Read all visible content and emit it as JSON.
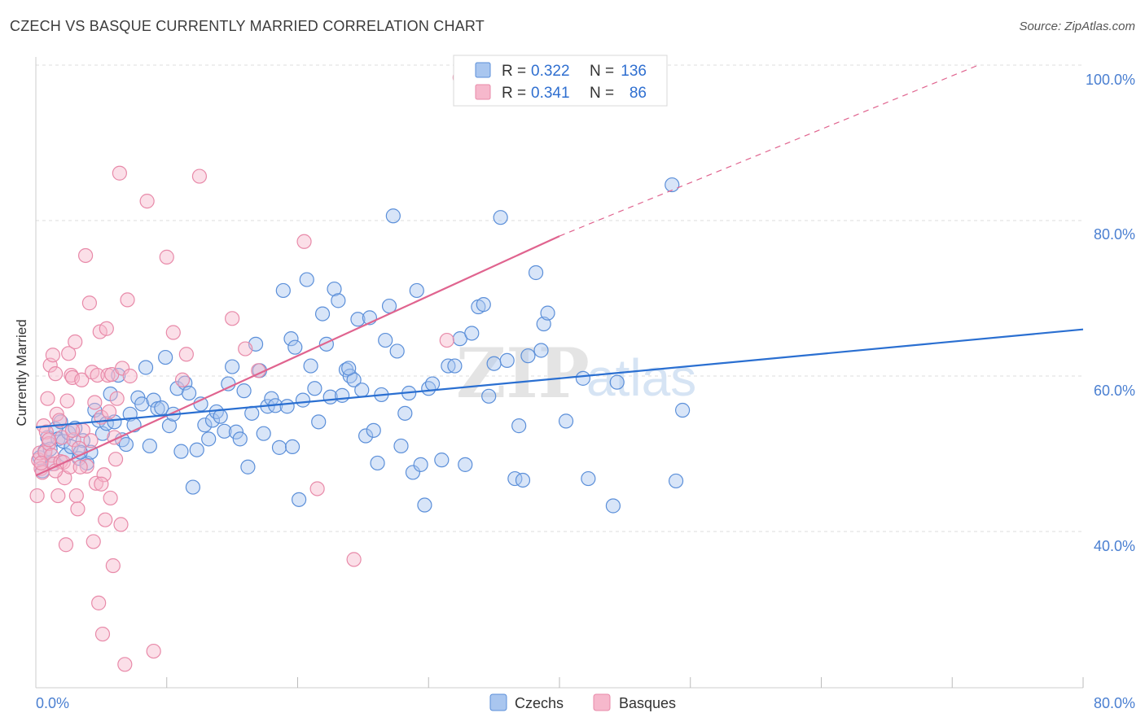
{
  "title": "CZECH VS BASQUE CURRENTLY MARRIED CORRELATION CHART",
  "source": "Source: ZipAtlas.com",
  "watermark": {
    "zip": "ZIP",
    "atlas": "atlas"
  },
  "colors": {
    "czech_fill": "#a9c6ef",
    "czech_stroke": "#5b8fd9",
    "czech_line": "#2a6fd1",
    "basque_fill": "#f6b8cc",
    "basque_stroke": "#e88aa9",
    "basque_line": "#e0648f",
    "grid": "#dddddd",
    "axis_text": "#4a7fd1"
  },
  "legend": {
    "rows": [
      {
        "r_label": "R =",
        "r_value": "0.322",
        "n_label": "N =",
        "n_value": "136",
        "series": "czech"
      },
      {
        "r_label": "R =",
        "r_value": "0.341",
        "n_label": "N =",
        "n_value": "86",
        "series": "basque"
      }
    ]
  },
  "bottom_legend": [
    "Czechs",
    "Basques"
  ],
  "chart_data": {
    "type": "scatter",
    "title": "CZECH VS BASQUE CURRENTLY MARRIED CORRELATION CHART",
    "ylabel": "Currently Married",
    "xlabel": "",
    "x_ticks": [
      "0.0%",
      "80.0%"
    ],
    "y_ticks": [
      "40.0%",
      "60.0%",
      "80.0%",
      "100.0%"
    ],
    "xlim": [
      0,
      80
    ],
    "ylim": [
      20,
      102
    ],
    "grid": true,
    "legend_position": "top-center",
    "series": [
      {
        "name": "Czechs",
        "R": 0.322,
        "N": 136,
        "trend": {
          "x0": 0,
          "y0": 53.4,
          "x1": 80,
          "y1": 66.0
        },
        "points": [
          [
            0.3,
            49.5
          ],
          [
            0.5,
            47.8
          ],
          [
            0.7,
            50.4
          ],
          [
            0.9,
            52.1
          ],
          [
            1.1,
            50.6
          ],
          [
            1.3,
            48.7
          ],
          [
            1.5,
            53.2
          ],
          [
            1.7,
            51.9
          ],
          [
            1.9,
            54.1
          ],
          [
            2.1,
            51.6
          ],
          [
            2.3,
            49.8
          ],
          [
            2.5,
            52.7
          ],
          [
            2.7,
            50.9
          ],
          [
            3.0,
            53.3
          ],
          [
            3.3,
            49.4
          ],
          [
            3.6,
            51.7
          ],
          [
            3.9,
            48.8
          ],
          [
            4.2,
            50.2
          ],
          [
            4.5,
            55.6
          ],
          [
            4.8,
            54.3
          ],
          [
            5.1,
            52.6
          ],
          [
            5.4,
            53.9
          ],
          [
            5.7,
            57.7
          ],
          [
            6.0,
            54.1
          ],
          [
            6.3,
            60.1
          ],
          [
            6.6,
            51.8
          ],
          [
            6.9,
            51.2
          ],
          [
            7.2,
            55.1
          ],
          [
            7.5,
            53.7
          ],
          [
            7.8,
            57.2
          ],
          [
            8.1,
            56.4
          ],
          [
            8.4,
            61.1
          ],
          [
            8.7,
            51.0
          ],
          [
            9.0,
            56.9
          ],
          [
            9.3,
            55.8
          ],
          [
            9.6,
            55.9
          ],
          [
            9.9,
            62.4
          ],
          [
            10.2,
            53.6
          ],
          [
            10.5,
            55.1
          ],
          [
            10.8,
            58.4
          ],
          [
            11.1,
            50.3
          ],
          [
            11.4,
            59.1
          ],
          [
            11.7,
            57.8
          ],
          [
            12.0,
            45.7
          ],
          [
            12.3,
            50.5
          ],
          [
            12.6,
            56.4
          ],
          [
            12.9,
            53.7
          ],
          [
            13.2,
            51.9
          ],
          [
            13.5,
            54.3
          ],
          [
            13.8,
            55.4
          ],
          [
            14.1,
            54.8
          ],
          [
            14.4,
            52.9
          ],
          [
            14.7,
            59.0
          ],
          [
            15.0,
            61.2
          ],
          [
            15.3,
            52.8
          ],
          [
            15.6,
            51.9
          ],
          [
            15.9,
            58.1
          ],
          [
            16.2,
            48.3
          ],
          [
            16.5,
            55.2
          ],
          [
            16.8,
            64.1
          ],
          [
            17.1,
            60.7
          ],
          [
            17.4,
            52.6
          ],
          [
            17.7,
            56.1
          ],
          [
            18.0,
            57.1
          ],
          [
            18.3,
            56.2
          ],
          [
            18.6,
            50.8
          ],
          [
            18.9,
            71.0
          ],
          [
            19.2,
            56.1
          ],
          [
            19.5,
            64.8
          ],
          [
            19.8,
            63.7
          ],
          [
            20.1,
            44.1
          ],
          [
            20.4,
            56.9
          ],
          [
            20.7,
            72.4
          ],
          [
            21.0,
            61.3
          ],
          [
            21.3,
            58.4
          ],
          [
            21.6,
            54.1
          ],
          [
            21.9,
            68.0
          ],
          [
            22.2,
            64.1
          ],
          [
            22.5,
            57.3
          ],
          [
            22.8,
            71.2
          ],
          [
            23.1,
            69.7
          ],
          [
            23.4,
            57.5
          ],
          [
            23.7,
            60.8
          ],
          [
            24.0,
            60.0
          ],
          [
            24.3,
            59.5
          ],
          [
            24.6,
            67.3
          ],
          [
            24.9,
            58.2
          ],
          [
            25.2,
            52.3
          ],
          [
            25.5,
            67.5
          ],
          [
            25.8,
            53.0
          ],
          [
            26.1,
            48.8
          ],
          [
            26.4,
            57.6
          ],
          [
            26.7,
            64.6
          ],
          [
            27.0,
            69.0
          ],
          [
            27.3,
            80.6
          ],
          [
            27.6,
            63.2
          ],
          [
            27.9,
            51.0
          ],
          [
            28.2,
            55.2
          ],
          [
            28.5,
            57.8
          ],
          [
            28.8,
            47.6
          ],
          [
            29.1,
            71.0
          ],
          [
            29.4,
            48.6
          ],
          [
            29.7,
            43.4
          ],
          [
            30.0,
            58.4
          ],
          [
            30.3,
            59.0
          ],
          [
            31.0,
            49.2
          ],
          [
            31.5,
            61.3
          ],
          [
            32.0,
            61.3
          ],
          [
            32.4,
            64.8
          ],
          [
            32.8,
            48.6
          ],
          [
            33.3,
            65.5
          ],
          [
            33.8,
            68.9
          ],
          [
            34.2,
            69.2
          ],
          [
            34.6,
            57.4
          ],
          [
            35.0,
            61.6
          ],
          [
            35.5,
            80.4
          ],
          [
            36.0,
            62.0
          ],
          [
            36.6,
            46.8
          ],
          [
            36.9,
            53.6
          ],
          [
            37.2,
            46.6
          ],
          [
            37.6,
            62.6
          ],
          [
            38.2,
            73.3
          ],
          [
            38.6,
            63.3
          ],
          [
            38.8,
            66.7
          ],
          [
            39.1,
            68.1
          ],
          [
            40.5,
            54.2
          ],
          [
            41.8,
            59.7
          ],
          [
            42.2,
            46.8
          ],
          [
            44.1,
            43.3
          ],
          [
            44.4,
            59.2
          ],
          [
            48.6,
            84.6
          ],
          [
            48.9,
            46.5
          ],
          [
            49.4,
            55.6
          ],
          [
            19.6,
            50.9
          ],
          [
            23.9,
            61.0
          ],
          [
            3.4,
            50.2
          ]
        ]
      },
      {
        "name": "Basques",
        "R": 0.341,
        "N": 86,
        "trend": {
          "x0": 0,
          "y0": 47.2,
          "x1": 40,
          "y1": 78.0
        },
        "trend_dashed": {
          "x0": 40,
          "y0": 78.0,
          "x1": 72,
          "y1": 100.0
        },
        "points": [
          [
            0.1,
            44.6
          ],
          [
            0.2,
            49.2
          ],
          [
            0.3,
            50.1
          ],
          [
            0.4,
            48.1
          ],
          [
            0.5,
            47.6
          ],
          [
            0.6,
            53.6
          ],
          [
            0.7,
            50.2
          ],
          [
            0.8,
            52.8
          ],
          [
            0.9,
            57.1
          ],
          [
            1.0,
            51.3
          ],
          [
            1.1,
            61.4
          ],
          [
            1.2,
            49.8
          ],
          [
            1.3,
            62.7
          ],
          [
            1.4,
            48.7
          ],
          [
            1.5,
            60.3
          ],
          [
            1.6,
            55.1
          ],
          [
            1.7,
            44.6
          ],
          [
            1.8,
            54.3
          ],
          [
            1.9,
            49.0
          ],
          [
            2.0,
            52.1
          ],
          [
            2.1,
            48.9
          ],
          [
            2.2,
            46.9
          ],
          [
            2.3,
            38.3
          ],
          [
            2.4,
            56.8
          ],
          [
            2.5,
            62.9
          ],
          [
            2.6,
            48.3
          ],
          [
            2.7,
            60.1
          ],
          [
            2.8,
            59.8
          ],
          [
            2.9,
            51.8
          ],
          [
            3.0,
            64.4
          ],
          [
            3.1,
            44.6
          ],
          [
            3.2,
            42.9
          ],
          [
            3.3,
            50.7
          ],
          [
            3.5,
            59.5
          ],
          [
            3.6,
            53.0
          ],
          [
            3.8,
            75.5
          ],
          [
            3.9,
            48.4
          ],
          [
            4.1,
            69.4
          ],
          [
            4.3,
            60.5
          ],
          [
            4.4,
            38.7
          ],
          [
            4.5,
            56.6
          ],
          [
            4.6,
            46.2
          ],
          [
            4.7,
            60.1
          ],
          [
            4.8,
            30.8
          ],
          [
            4.9,
            65.7
          ],
          [
            5.0,
            54.7
          ],
          [
            5.1,
            26.8
          ],
          [
            5.2,
            47.3
          ],
          [
            5.3,
            41.5
          ],
          [
            5.4,
            66.1
          ],
          [
            5.5,
            60.1
          ],
          [
            5.6,
            55.4
          ],
          [
            5.7,
            44.3
          ],
          [
            5.8,
            60.2
          ],
          [
            5.9,
            35.6
          ],
          [
            6.0,
            52.1
          ],
          [
            6.2,
            57.1
          ],
          [
            6.4,
            86.1
          ],
          [
            6.5,
            40.9
          ],
          [
            6.6,
            61.0
          ],
          [
            6.8,
            22.9
          ],
          [
            7.0,
            69.8
          ],
          [
            7.2,
            60.0
          ],
          [
            8.5,
            82.5
          ],
          [
            9.0,
            24.6
          ],
          [
            10.0,
            75.3
          ],
          [
            10.5,
            65.6
          ],
          [
            11.2,
            59.5
          ],
          [
            11.5,
            62.8
          ],
          [
            12.5,
            85.7
          ],
          [
            15.0,
            67.4
          ],
          [
            16.0,
            63.5
          ],
          [
            17.0,
            60.7
          ],
          [
            20.5,
            77.3
          ],
          [
            21.5,
            45.5
          ],
          [
            24.3,
            36.4
          ],
          [
            31.4,
            64.6
          ],
          [
            32.4,
            98.4
          ],
          [
            1.5,
            47.8
          ],
          [
            2.8,
            53.0
          ],
          [
            0.4,
            48.8
          ],
          [
            1.0,
            51.8
          ],
          [
            3.4,
            48.3
          ],
          [
            4.2,
            51.7
          ],
          [
            5.0,
            46.1
          ],
          [
            6.1,
            49.3
          ]
        ]
      }
    ]
  }
}
